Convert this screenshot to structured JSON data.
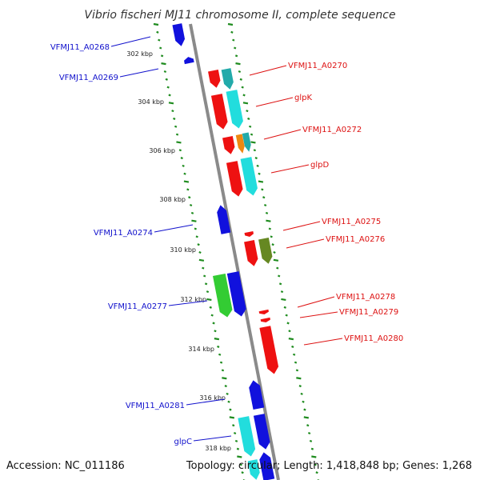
{
  "title": "Vibrio fischeri MJ11 chromosome II, complete sequence",
  "accession_text": "Accession: NC_011186",
  "topology_text": "Topology: circular; Length: 1,418,848 bp; Genes: 1,268",
  "colors": {
    "backbone": "#8a8a8a",
    "ticks": "#1f8c1f",
    "left_label": "#1111cc",
    "right_label": "#dd1111",
    "red_gene": "#ee1111",
    "cyan_gene": "#22dddd",
    "teal_gene": "#22aaaa",
    "blue_gene": "#1111dd",
    "green_gene": "#33cc33",
    "olive_gene": "#668822",
    "orange_gene": "#ee8811"
  },
  "scale": [
    {
      "label": "302 kbp"
    },
    {
      "label": "304 kbp"
    },
    {
      "label": "306 kbp"
    },
    {
      "label": "308 kbp"
    },
    {
      "label": "310 kbp"
    },
    {
      "label": "312 kbp"
    },
    {
      "label": "314 kbp"
    },
    {
      "label": "316 kbp"
    },
    {
      "label": "318 kbp"
    }
  ],
  "left_labels": [
    {
      "text": "VFMJ11_A0268"
    },
    {
      "text": "VFMJ11_A0269"
    },
    {
      "text": "VFMJ11_A0274"
    },
    {
      "text": "VFMJ11_A0277"
    },
    {
      "text": "VFMJ11_A0281"
    },
    {
      "text": "glpC"
    }
  ],
  "right_labels": [
    {
      "text": "VFMJ11_A0270"
    },
    {
      "text": "glpK"
    },
    {
      "text": "VFMJ11_A0272"
    },
    {
      "text": "glpD"
    },
    {
      "text": "VFMJ11_A0275"
    },
    {
      "text": "VFMJ11_A0276"
    },
    {
      "text": "VFMJ11_A0278"
    },
    {
      "text": "VFMJ11_A0279"
    },
    {
      "text": "VFMJ11_A0280"
    }
  ]
}
